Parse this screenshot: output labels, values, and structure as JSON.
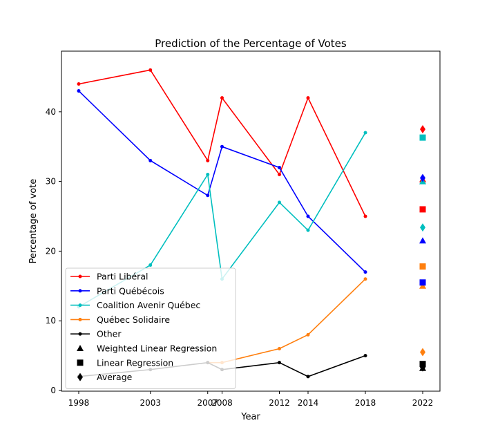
{
  "chart_data": {
    "type": "line",
    "title": "Prediction of the Percentage of Votes",
    "xlabel": "Year",
    "ylabel": "Percentage of vote",
    "xlim": [
      1998,
      2022
    ],
    "ylim": [
      0,
      46
    ],
    "xticks": [
      "1998",
      "2003",
      "2007",
      "2008",
      "2012",
      "2014",
      "2018",
      "2022"
    ],
    "yticks": [
      "0",
      "10",
      "20",
      "30",
      "40"
    ],
    "x": [
      1998,
      2003,
      2007,
      2008,
      2012,
      2014,
      2018
    ],
    "series": [
      {
        "name": "Parti Libéral",
        "color": "#ff0000",
        "values": [
          44,
          46,
          33,
          42,
          31,
          42,
          25
        ]
      },
      {
        "name": "Parti Québécois",
        "color": "#0000ff",
        "values": [
          43,
          33,
          28,
          35,
          32,
          25,
          17
        ]
      },
      {
        "name": "Coalition Avenir Québec",
        "color": "#00bfbf",
        "values": [
          12,
          18,
          31,
          16,
          27,
          23,
          37
        ]
      },
      {
        "name": "Québec Solidaire",
        "color": "#ff7f0e",
        "values": [
          null,
          null,
          4,
          4,
          6,
          8,
          16
        ]
      },
      {
        "name": "Other",
        "color": "#000000",
        "values": [
          2,
          3,
          4,
          3,
          4,
          2,
          5
        ]
      }
    ],
    "predictions": {
      "year": 2022,
      "methods": [
        {
          "name": "Weighted Linear Regression",
          "marker": "triangle",
          "values": [
            30.3,
            21.5,
            30.0,
            15.0,
            3.2
          ]
        },
        {
          "name": "Linear Regression",
          "marker": "square",
          "values": [
            26.0,
            15.5,
            36.3,
            17.8,
            3.8
          ]
        },
        {
          "name": "Average",
          "marker": "diamond",
          "values": [
            37.5,
            30.5,
            23.4,
            5.5,
            3.3
          ]
        }
      ]
    },
    "legend_position": "lower-left",
    "grid": false
  }
}
